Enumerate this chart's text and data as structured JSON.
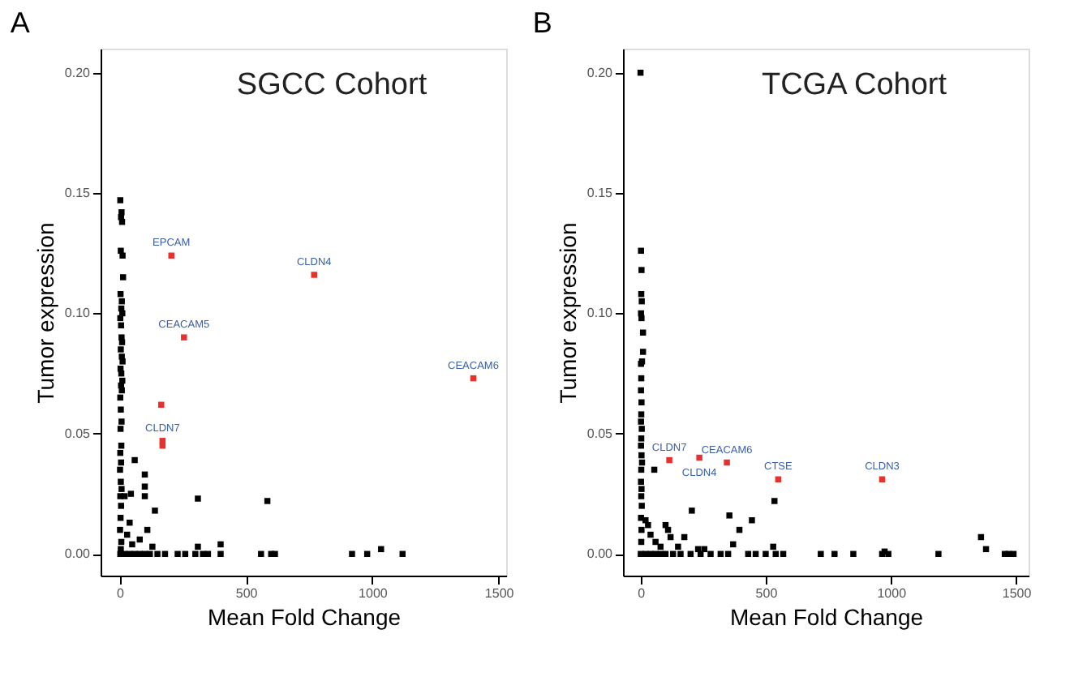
{
  "chart_data": [
    {
      "type": "scatter",
      "title": "SGCC Cohort",
      "xlabel": "Mean Fold Change",
      "ylabel": "Tumor expression",
      "annotations": [
        "A",
        {
          "text": "EPCAM",
          "x": 205,
          "y": 0.124
        },
        {
          "text": "CLDN4",
          "x": 770,
          "y": 0.116
        },
        {
          "text": "CEACAM5",
          "x": 255,
          "y": 0.09
        },
        {
          "text": "CEACAM6",
          "x": 1400,
          "y": 0.073
        },
        {
          "text": "CLDN7",
          "x": 170,
          "y": 0.047
        }
      ],
      "series": [
        {
          "color": "#000000",
          "x": [
            3,
            8,
            6,
            10,
            5,
            12,
            14,
            4,
            9,
            7,
            11,
            3,
            6,
            8,
            10,
            5,
            9,
            12,
            4,
            7,
            11,
            6,
            9,
            3,
            5,
            8,
            4,
            7,
            3,
            6,
            2,
            5,
            8,
            3,
            6,
            4,
            2,
            7,
            5,
            3,
            60,
            100,
            100,
            100,
            20,
            45,
            140,
            310,
            585,
            110,
            40,
            80,
            30,
            400,
            1035,
            310,
            50,
            130,
            20,
            40,
            60,
            80,
            100,
            120,
            150,
            180,
            230,
            260,
            300,
            330,
            350,
            400,
            560,
            600,
            615,
            920,
            980,
            1120
          ],
          "values": [
            0.147,
            0.142,
            0.14,
            0.138,
            0.126,
            0.124,
            0.115,
            0.108,
            0.105,
            0.102,
            0.1,
            0.098,
            0.095,
            0.09,
            0.088,
            0.085,
            0.082,
            0.08,
            0.077,
            0.075,
            0.072,
            0.07,
            0.068,
            0.065,
            0.06,
            0.055,
            0.052,
            0.045,
            0.042,
            0.038,
            0.035,
            0.03,
            0.027,
            0.024,
            0.02,
            0.015,
            0.01,
            0.005,
            0.002,
            0,
            0.039,
            0.033,
            0.028,
            0.024,
            0.024,
            0.025,
            0.018,
            0.023,
            0.022,
            0.01,
            0.013,
            0.006,
            0.008,
            0.004,
            0.002,
            0.003,
            0.004,
            0.003,
            0,
            0,
            0,
            0,
            0,
            0,
            0,
            0,
            0,
            0,
            0,
            0,
            0,
            0,
            0,
            0,
            0,
            0,
            0,
            0
          ]
        },
        {
          "color": "#e8312f",
          "x": [
            205,
            770,
            255,
            1400,
            165,
            170,
            170
          ],
          "values": [
            0.124,
            0.116,
            0.09,
            0.073,
            0.062,
            0.047,
            0.045
          ]
        }
      ],
      "xlim": [
        -75,
        1530
      ],
      "ylim": [
        -0.009,
        0.21
      ],
      "xticks": [
        0,
        500,
        1000,
        1500
      ],
      "yticks": [
        {
          "value": 0,
          "label": "0.00"
        },
        {
          "value": 0.05,
          "label": "0.05"
        },
        {
          "value": 0.1,
          "label": "0.10"
        },
        {
          "value": 0.15,
          "label": "0.15"
        },
        {
          "value": 0.2,
          "label": "0.20"
        }
      ],
      "marker": "square",
      "grid": false
    },
    {
      "type": "scatter",
      "title": "TCGA Cohort",
      "xlabel": "Mean Fold Change",
      "ylabel": "Tumor expression",
      "annotations": [
        "B",
        {
          "text": "CLDN7",
          "x": 115,
          "y": 0.039
        },
        {
          "text": "CLDN4",
          "x": 235,
          "y": 0.04
        },
        {
          "text": "CEACAM6",
          "x": 345,
          "y": 0.038
        },
        {
          "text": "CTSE",
          "x": 550,
          "y": 0.031
        },
        {
          "text": "CLDN3",
          "x": 965,
          "y": 0.031
        }
      ],
      "series": [
        {
          "color": "#000000",
          "x": [
            0,
            2,
            4,
            3,
            5,
            2,
            4,
            10,
            10,
            6,
            2,
            3,
            2,
            4,
            3,
            2,
            5,
            3,
            2,
            4,
            6,
            3,
            2,
            4,
            3,
            5,
            2,
            4,
            3,
            1,
            55,
            205,
            355,
            445,
            395,
            370,
            535,
            530,
            1360,
            1380,
            975,
            20,
            30,
            100,
            110,
            120,
            175,
            40,
            60,
            80,
            150,
            230,
            255,
            20,
            40,
            60,
            80,
            100,
            130,
            160,
            200,
            240,
            280,
            320,
            350,
            430,
            460,
            500,
            540,
            570,
            720,
            775,
            850,
            965,
            990,
            1190,
            1455,
            1470,
            1490
          ],
          "values": [
            0.2,
            0.126,
            0.118,
            0.108,
            0.105,
            0.1,
            0.098,
            0.092,
            0.084,
            0.08,
            0.079,
            0.073,
            0.068,
            0.063,
            0.058,
            0.055,
            0.052,
            0.048,
            0.045,
            0.041,
            0.038,
            0.035,
            0.03,
            0.027,
            0.024,
            0.02,
            0.015,
            0.01,
            0.005,
            0,
            0.035,
            0.018,
            0.016,
            0.014,
            0.01,
            0.004,
            0.022,
            0.003,
            0.007,
            0.002,
            0.001,
            0.014,
            0.012,
            0.012,
            0.01,
            0.007,
            0.007,
            0.008,
            0.005,
            0.003,
            0.003,
            0.002,
            0.002,
            0,
            0,
            0,
            0,
            0,
            0,
            0,
            0,
            0,
            0,
            0,
            0,
            0,
            0,
            0,
            0,
            0,
            0,
            0,
            0,
            0,
            0,
            0,
            0,
            0,
            0
          ]
        },
        {
          "color": "#e8312f",
          "x": [
            115,
            235,
            345,
            550,
            965
          ],
          "values": [
            0.039,
            0.04,
            0.038,
            0.031,
            0.031
          ]
        }
      ],
      "xlim": [
        -70,
        1550
      ],
      "ylim": [
        -0.009,
        0.21
      ],
      "xticks": [
        0,
        500,
        1000,
        1500
      ],
      "yticks": [
        {
          "value": 0,
          "label": "0.00"
        },
        {
          "value": 0.05,
          "label": "0.05"
        },
        {
          "value": 0.1,
          "label": "0.10"
        },
        {
          "value": 0.15,
          "label": "0.15"
        },
        {
          "value": 0.2,
          "label": "0.20"
        }
      ],
      "marker": "square",
      "grid": false
    }
  ]
}
